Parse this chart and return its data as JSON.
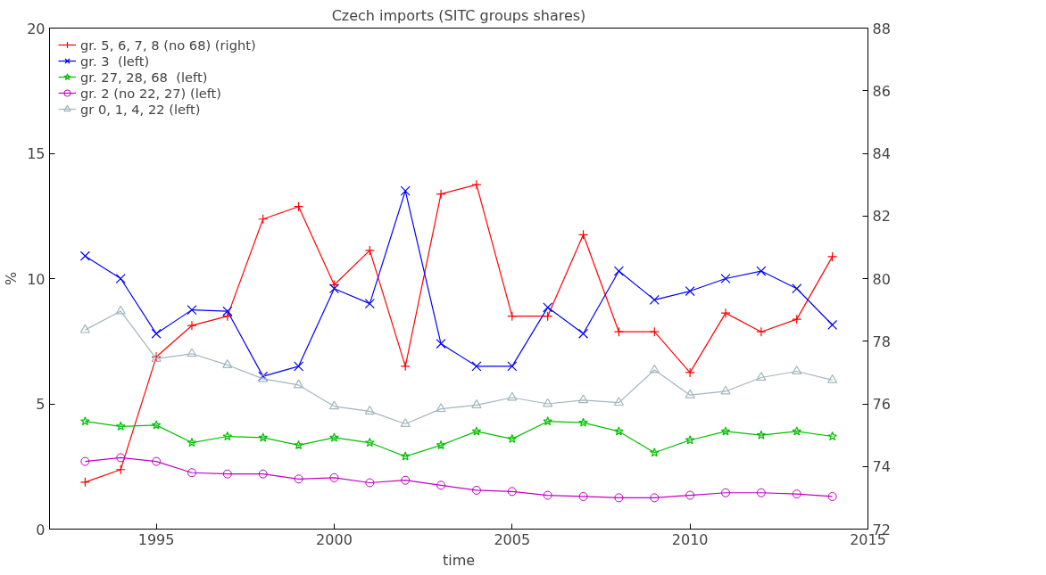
{
  "chart_data": {
    "type": "line",
    "title": "Czech imports (SITC groups shares)",
    "xlabel": "time",
    "ylabel": "%",
    "x": [
      1993,
      1994,
      1995,
      1996,
      1997,
      1998,
      1999,
      2000,
      2001,
      2002,
      2003,
      2004,
      2005,
      2006,
      2007,
      2008,
      2009,
      2010,
      2011,
      2012,
      2013,
      2014
    ],
    "xlim": [
      1992,
      2015
    ],
    "xticks": [
      1995,
      2000,
      2005,
      2010,
      2015
    ],
    "ylim": [
      0,
      20
    ],
    "yticks": [
      0,
      5,
      10,
      15,
      20
    ],
    "y2lim": [
      72,
      88
    ],
    "y2ticks": [
      72,
      74,
      76,
      78,
      80,
      82,
      84,
      86,
      88
    ],
    "grid": false,
    "legend": "top left",
    "series": [
      {
        "name": "gr. 5, 6, 7, 8 (no 68) (right)",
        "color": "#ff0000",
        "axis": "y2",
        "marker": "cross",
        "values": [
          73.5,
          73.9,
          77.5,
          78.5,
          78.8,
          81.9,
          82.3,
          79.8,
          80.9,
          77.2,
          82.7,
          83.0,
          78.8,
          78.8,
          81.4,
          78.3,
          78.3,
          77.0,
          78.9,
          78.3,
          78.7,
          80.7
        ]
      },
      {
        "name": "gr. 3  (left)",
        "color": "#0000ff",
        "marker": "x",
        "values": [
          10.9,
          10.0,
          7.8,
          8.75,
          8.7,
          6.1,
          6.5,
          9.6,
          9.0,
          13.5,
          7.4,
          6.5,
          6.5,
          8.85,
          7.8,
          10.3,
          9.15,
          9.5,
          10.0,
          10.3,
          9.6,
          8.15
        ]
      },
      {
        "name": "gr. 27, 28, 68  (left)",
        "color": "#00c000",
        "marker": "star",
        "values": [
          4.3,
          4.1,
          4.15,
          3.45,
          3.7,
          3.65,
          3.35,
          3.65,
          3.45,
          2.9,
          3.35,
          3.9,
          3.6,
          4.3,
          4.25,
          3.9,
          3.05,
          3.55,
          3.9,
          3.75,
          3.9,
          3.7
        ]
      },
      {
        "name": "gr. 2 (no 22, 27) (left)",
        "color": "#c000c0",
        "marker": "circle",
        "values": [
          2.7,
          2.85,
          2.7,
          2.25,
          2.2,
          2.2,
          2.0,
          2.05,
          1.85,
          1.95,
          1.75,
          1.55,
          1.5,
          1.35,
          1.3,
          1.25,
          1.25,
          1.35,
          1.45,
          1.45,
          1.4,
          1.3
        ]
      },
      {
        "name": "gr 0, 1, 4, 22 (left)",
        "color": "#a0b6be",
        "marker": "triangle",
        "values": [
          7.95,
          8.7,
          6.8,
          7.0,
          6.55,
          6.0,
          5.75,
          4.9,
          4.7,
          4.2,
          4.8,
          4.95,
          5.25,
          5.0,
          5.15,
          5.05,
          6.35,
          5.35,
          5.5,
          6.05,
          6.3,
          5.95
        ]
      }
    ]
  }
}
